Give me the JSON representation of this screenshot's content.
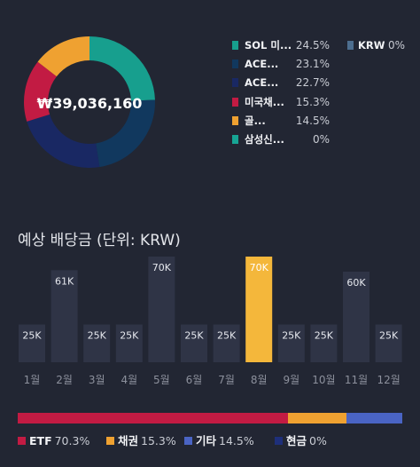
{
  "portfolio": {
    "total": "₩39,036,160",
    "slices": [
      {
        "name": "SOL 미...",
        "pct_label": "24.5%",
        "value": 24.5,
        "color": "#179f8e"
      },
      {
        "name": "ACE...",
        "pct_label": "23.1%",
        "value": 23.1,
        "color": "#11385e"
      },
      {
        "name": "ACE...",
        "pct_label": "22.7%",
        "value": 22.7,
        "color": "#192863"
      },
      {
        "name": "미국채...",
        "pct_label": "15.3%",
        "value": 15.3,
        "color": "#c21b43"
      },
      {
        "name": "골...",
        "pct_label": "14.5%",
        "value": 14.5,
        "color": "#efa131"
      },
      {
        "name": "삼성신...",
        "pct_label": "0%",
        "value": 0,
        "color": "#17a595"
      }
    ],
    "extra_legend": {
      "name": "KRW",
      "pct_label": "0%",
      "color": "#4d6e8f"
    }
  },
  "dividends": {
    "title": "예상 배당금 (단위: KRW)",
    "chart_data": {
      "type": "bar",
      "categories": [
        "1월",
        "2월",
        "3월",
        "4월",
        "5월",
        "6월",
        "7월",
        "8월",
        "9월",
        "10월",
        "11월",
        "12월"
      ],
      "values": [
        25000,
        61000,
        25000,
        25000,
        70000,
        25000,
        25000,
        70000,
        25000,
        25000,
        60000,
        25000
      ],
      "value_labels": [
        "25K",
        "61K",
        "25K",
        "25K",
        "70K",
        "25K",
        "25K",
        "70K",
        "25K",
        "25K",
        "60K",
        "25K"
      ],
      "highlight_index": 7,
      "bar_color": "#2f3446",
      "highlight_color": "#f4b73b",
      "ylim": [
        0,
        70000
      ]
    }
  },
  "allocation": {
    "segments": [
      {
        "name": "ETF",
        "pct_label": "70.3%",
        "value": 70.3,
        "color": "#c21b43"
      },
      {
        "name": "채권",
        "pct_label": "15.3%",
        "value": 15.3,
        "color": "#efa131"
      },
      {
        "name": "기타",
        "pct_label": "14.5%",
        "value": 14.5,
        "color": "#4a64c4"
      },
      {
        "name": "현금",
        "pct_label": "0%",
        "value": 0,
        "color": "#1e2f7a"
      }
    ]
  }
}
